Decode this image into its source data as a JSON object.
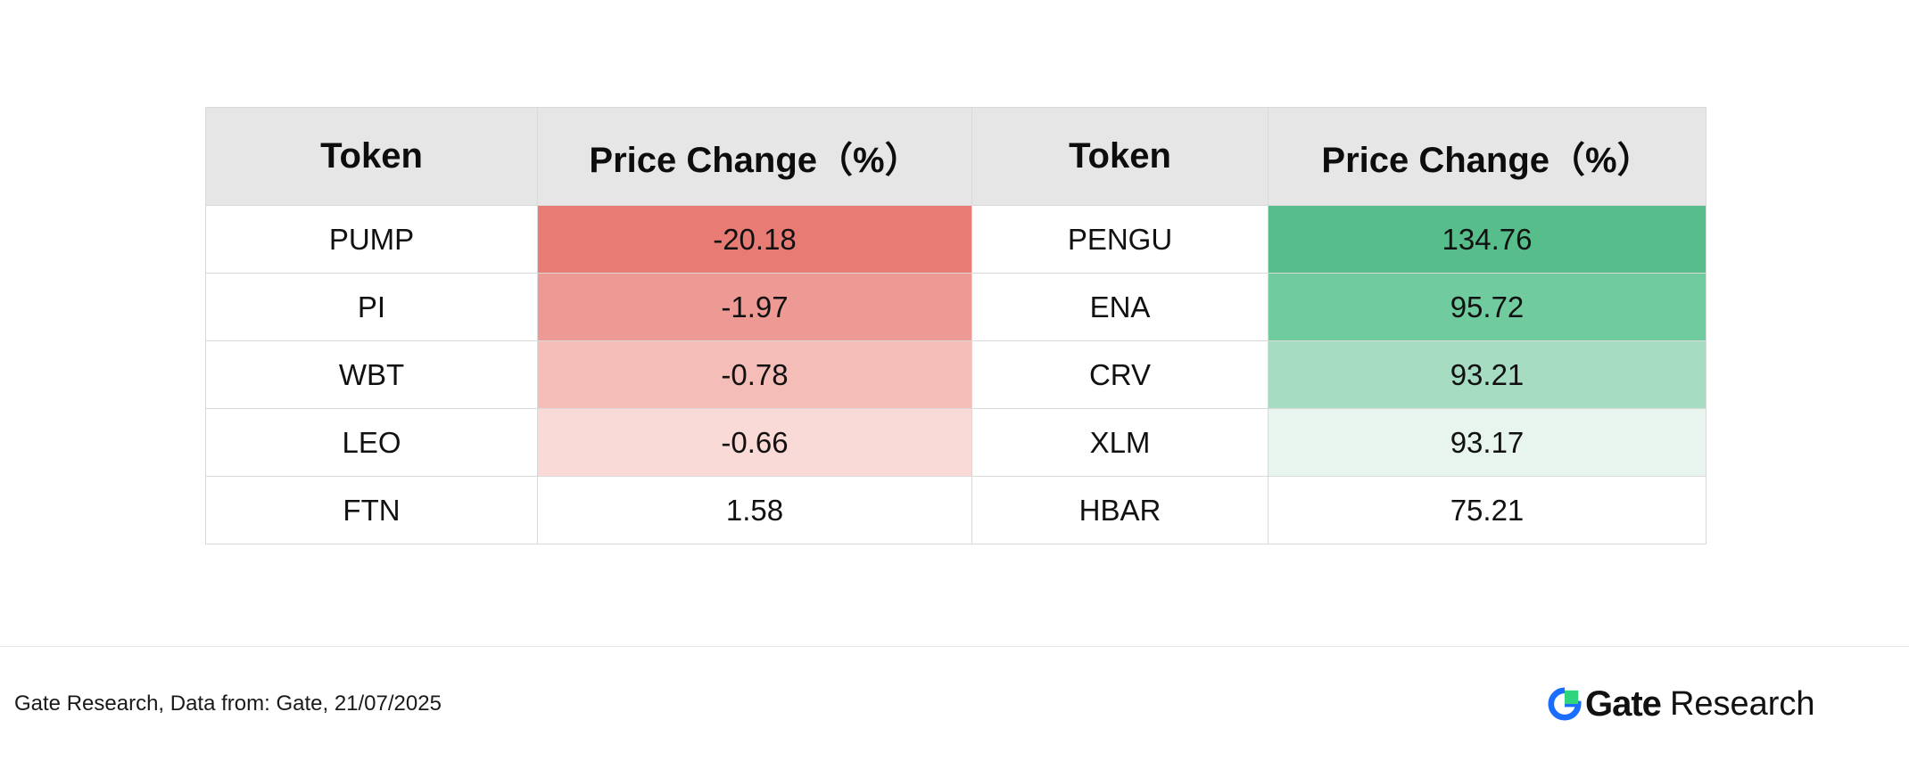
{
  "chart_data": {
    "type": "table",
    "headers": [
      "Token",
      "Price Change（%）",
      "Token",
      "Price Change（%）"
    ],
    "rows": [
      {
        "token_left": "PUMP",
        "change_left": "-20.18",
        "bg_left": "#e87b74",
        "token_right": "PENGU",
        "change_right": "134.76",
        "bg_right": "#57bd8a"
      },
      {
        "token_left": "PI",
        "change_left": "-1.97",
        "bg_left": "#ec9a93",
        "token_right": "ENA",
        "change_right": "95.72",
        "bg_right": "#70cc9e"
      },
      {
        "token_left": "WBT",
        "change_left": "-0.78",
        "bg_left": "#f4bdb8",
        "token_right": "CRV",
        "change_right": "93.21",
        "bg_right": "#a6dcc1"
      },
      {
        "token_left": "LEO",
        "change_left": "-0.66",
        "bg_left": "#fadad7",
        "token_right": "XLM",
        "change_right": "93.17",
        "bg_right": "#e8f5ee"
      },
      {
        "token_left": "FTN",
        "change_left": "1.58",
        "bg_left": "#ffffff",
        "token_right": "HBAR",
        "change_right": "75.21",
        "bg_right": "#ffffff"
      }
    ]
  },
  "footer": {
    "source": "Gate Research, Data from: Gate, 21/07/2025",
    "brand_name": "Gate",
    "brand_suffix": "Research",
    "brand_logo_icon": "gate-logo-icon"
  },
  "colors": {
    "header_bg": "#e6e6e6",
    "grid_line": "#d9d9d9",
    "brand_blue": "#1a6dff",
    "brand_green": "#2fd47d"
  }
}
